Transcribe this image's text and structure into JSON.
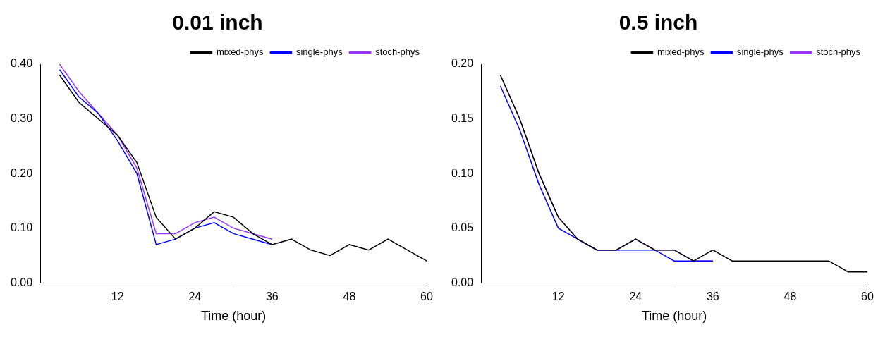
{
  "chart_data": [
    {
      "type": "line",
      "title": "0.01 inch",
      "x_label": "Time (hour)",
      "xlim": [
        0,
        60
      ],
      "xticks": [
        12,
        24,
        36,
        48,
        60
      ],
      "ylim": [
        0,
        0.4
      ],
      "yticks": [
        {
          "value": 0,
          "label": "0.00"
        },
        {
          "value": 0.1,
          "label": "0.10"
        },
        {
          "value": 0.2,
          "label": "0.20"
        },
        {
          "value": 0.3,
          "label": "0.30"
        },
        {
          "value": 0.4,
          "label": "0.40"
        }
      ],
      "legend": "top-right",
      "series": [
        {
          "name": "mixed-phys",
          "color": "#000000",
          "x": [
            3,
            6,
            9,
            12,
            15,
            18,
            21,
            24,
            27,
            30,
            33,
            36,
            39,
            42,
            45,
            48,
            51,
            54,
            57,
            60
          ],
          "values": [
            0.38,
            0.33,
            0.3,
            0.27,
            0.22,
            0.12,
            0.08,
            0.1,
            0.13,
            0.12,
            0.09,
            0.07,
            0.08,
            0.06,
            0.05,
            0.07,
            0.06,
            0.08,
            0.06,
            0.04
          ]
        },
        {
          "name": "single-phys",
          "color": "#0000ff",
          "x": [
            3,
            6,
            9,
            12,
            15,
            18,
            21,
            24,
            27,
            30,
            33,
            36
          ],
          "values": [
            0.39,
            0.34,
            0.31,
            0.26,
            0.2,
            0.07,
            0.08,
            0.1,
            0.11,
            0.09,
            0.08,
            0.07
          ]
        },
        {
          "name": "stoch-phys",
          "color": "#9933ff",
          "x": [
            3,
            6,
            9,
            12,
            15,
            18,
            21,
            24,
            27,
            30,
            33,
            36
          ],
          "values": [
            0.4,
            0.35,
            0.31,
            0.27,
            0.21,
            0.09,
            0.09,
            0.11,
            0.12,
            0.1,
            0.09,
            0.08
          ]
        }
      ]
    },
    {
      "type": "line",
      "title": "0.5 inch",
      "x_label": "Time (hour)",
      "xlim": [
        0,
        60
      ],
      "xticks": [
        12,
        24,
        36,
        48,
        60
      ],
      "ylim": [
        0,
        0.2
      ],
      "yticks": [
        {
          "value": 0,
          "label": "0.00"
        },
        {
          "value": 0.05,
          "label": "0.05"
        },
        {
          "value": 0.1,
          "label": "0.10"
        },
        {
          "value": 0.15,
          "label": "0.15"
        },
        {
          "value": 0.2,
          "label": "0.20"
        }
      ],
      "legend": "top-right",
      "series": [
        {
          "name": "mixed-phys",
          "color": "#000000",
          "x": [
            3,
            6,
            9,
            12,
            15,
            18,
            21,
            24,
            27,
            30,
            33,
            36,
            39,
            42,
            45,
            48,
            51,
            54,
            57,
            60
          ],
          "values": [
            0.19,
            0.15,
            0.1,
            0.06,
            0.04,
            0.03,
            0.03,
            0.04,
            0.03,
            0.03,
            0.02,
            0.03,
            0.02,
            0.02,
            0.02,
            0.02,
            0.02,
            0.02,
            0.01,
            0.01
          ]
        },
        {
          "name": "single-phys",
          "color": "#0000ff",
          "x": [
            3,
            6,
            9,
            12,
            15,
            18,
            21,
            24,
            27,
            30,
            33,
            36
          ],
          "values": [
            0.18,
            0.14,
            0.09,
            0.05,
            0.04,
            0.03,
            0.03,
            0.03,
            0.03,
            0.02,
            0.02,
            0.02
          ]
        },
        {
          "name": "stoch-phys",
          "color": "#9933ff",
          "x": [
            3,
            6,
            9,
            12,
            15,
            18,
            21,
            24,
            27,
            30,
            33,
            36
          ],
          "values": [
            0.19,
            0.15,
            0.1,
            0.06,
            0.04,
            0.03,
            0.03,
            0.04,
            0.03,
            0.03,
            0.02,
            0.02
          ]
        }
      ]
    }
  ]
}
